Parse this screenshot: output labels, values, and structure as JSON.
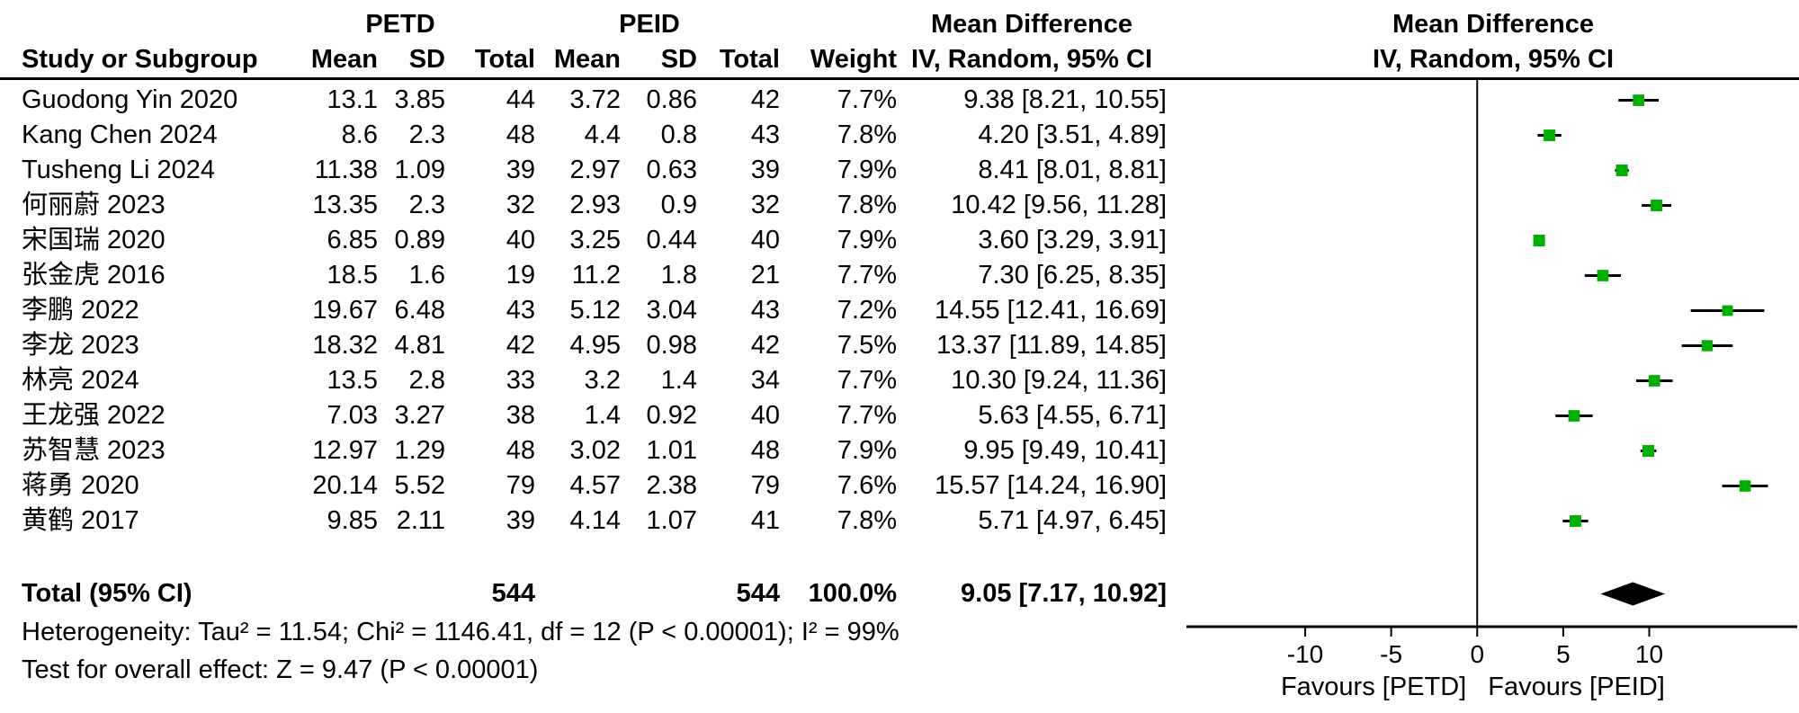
{
  "header": {
    "group_petd": "PETD",
    "group_peid": "PEID",
    "md_text_col": "Mean Difference",
    "md_plot_col": "Mean Difference",
    "study": "Study or Subgroup",
    "mean": "Mean",
    "sd": "SD",
    "total": "Total",
    "weight": "Weight",
    "ci_method": "IV, Random, 95% CI",
    "ci_method_plot": "IV, Random, 95% CI"
  },
  "chart_data": {
    "type": "forest",
    "effect_measure": "Mean Difference",
    "effect_method": "IV, Random, 95% CI",
    "marker_color": "#00B000",
    "line_color": "#000000",
    "xlim": [
      -16.9,
      18.6
    ],
    "x_ticks": [
      -10,
      -5,
      0,
      5,
      10
    ],
    "x_axis_labels": {
      "left": "Favours [PETD]",
      "right": "Favours [PEID]"
    },
    "studies": [
      {
        "name": "Guodong Yin 2020",
        "mean1": 13.1,
        "sd1": 3.85,
        "n1": 44,
        "mean2": 3.72,
        "sd2": 0.86,
        "n2": 42,
        "weight": "7.7%",
        "weight_pct": 7.7,
        "md": 9.38,
        "lo": 8.21,
        "hi": 10.55,
        "ci_text": "9.38 [8.21, 10.55]"
      },
      {
        "name": "Kang Chen 2024",
        "mean1": 8.6,
        "sd1": 2.3,
        "n1": 48,
        "mean2": 4.4,
        "sd2": 0.8,
        "n2": 43,
        "weight": "7.8%",
        "weight_pct": 7.8,
        "md": 4.2,
        "lo": 3.51,
        "hi": 4.89,
        "ci_text": "4.20 [3.51, 4.89]"
      },
      {
        "name": "Tusheng Li 2024",
        "mean1": 11.38,
        "sd1": 1.09,
        "n1": 39,
        "mean2": 2.97,
        "sd2": 0.63,
        "n2": 39,
        "weight": "7.9%",
        "weight_pct": 7.9,
        "md": 8.41,
        "lo": 8.01,
        "hi": 8.81,
        "ci_text": "8.41 [8.01, 8.81]"
      },
      {
        "name": "何丽蔚 2023",
        "mean1": 13.35,
        "sd1": 2.3,
        "n1": 32,
        "mean2": 2.93,
        "sd2": 0.9,
        "n2": 32,
        "weight": "7.8%",
        "weight_pct": 7.8,
        "md": 10.42,
        "lo": 9.56,
        "hi": 11.28,
        "ci_text": "10.42 [9.56, 11.28]"
      },
      {
        "name": "宋国瑞 2020",
        "mean1": 6.85,
        "sd1": 0.89,
        "n1": 40,
        "mean2": 3.25,
        "sd2": 0.44,
        "n2": 40,
        "weight": "7.9%",
        "weight_pct": 7.9,
        "md": 3.6,
        "lo": 3.29,
        "hi": 3.91,
        "ci_text": "3.60 [3.29, 3.91]"
      },
      {
        "name": "张金虎 2016",
        "mean1": 18.5,
        "sd1": 1.6,
        "n1": 19,
        "mean2": 11.2,
        "sd2": 1.8,
        "n2": 21,
        "weight": "7.7%",
        "weight_pct": 7.7,
        "md": 7.3,
        "lo": 6.25,
        "hi": 8.35,
        "ci_text": "7.30 [6.25, 8.35]"
      },
      {
        "name": "李鹏 2022",
        "mean1": 19.67,
        "sd1": 6.48,
        "n1": 43,
        "mean2": 5.12,
        "sd2": 3.04,
        "n2": 43,
        "weight": "7.2%",
        "weight_pct": 7.2,
        "md": 14.55,
        "lo": 12.41,
        "hi": 16.69,
        "ci_text": "14.55 [12.41, 16.69]"
      },
      {
        "name": "李龙 2023",
        "mean1": 18.32,
        "sd1": 4.81,
        "n1": 42,
        "mean2": 4.95,
        "sd2": 0.98,
        "n2": 42,
        "weight": "7.5%",
        "weight_pct": 7.5,
        "md": 13.37,
        "lo": 11.89,
        "hi": 14.85,
        "ci_text": "13.37 [11.89, 14.85]"
      },
      {
        "name": "林亮 2024",
        "mean1": 13.5,
        "sd1": 2.8,
        "n1": 33,
        "mean2": 3.2,
        "sd2": 1.4,
        "n2": 34,
        "weight": "7.7%",
        "weight_pct": 7.7,
        "md": 10.3,
        "lo": 9.24,
        "hi": 11.36,
        "ci_text": "10.30 [9.24, 11.36]"
      },
      {
        "name": "王龙强 2022",
        "mean1": 7.03,
        "sd1": 3.27,
        "n1": 38,
        "mean2": 1.4,
        "sd2": 0.92,
        "n2": 40,
        "weight": "7.7%",
        "weight_pct": 7.7,
        "md": 5.63,
        "lo": 4.55,
        "hi": 6.71,
        "ci_text": "5.63 [4.55, 6.71]"
      },
      {
        "name": "苏智慧 2023",
        "mean1": 12.97,
        "sd1": 1.29,
        "n1": 48,
        "mean2": 3.02,
        "sd2": 1.01,
        "n2": 48,
        "weight": "7.9%",
        "weight_pct": 7.9,
        "md": 9.95,
        "lo": 9.49,
        "hi": 10.41,
        "ci_text": "9.95 [9.49, 10.41]"
      },
      {
        "name": "蒋勇 2020",
        "mean1": 20.14,
        "sd1": 5.52,
        "n1": 79,
        "mean2": 4.57,
        "sd2": 2.38,
        "n2": 79,
        "weight": "7.6%",
        "weight_pct": 7.6,
        "md": 15.57,
        "lo": 14.24,
        "hi": 16.9,
        "ci_text": "15.57 [14.24, 16.90]"
      },
      {
        "name": "黄鹤 2017",
        "mean1": 9.85,
        "sd1": 2.11,
        "n1": 39,
        "mean2": 4.14,
        "sd2": 1.07,
        "n2": 41,
        "weight": "7.8%",
        "weight_pct": 7.8,
        "md": 5.71,
        "lo": 4.97,
        "hi": 6.45,
        "ci_text": "5.71 [4.97, 6.45]"
      }
    ],
    "overall": {
      "label": "Total (95% CI)",
      "total_petd": 544,
      "total_peid": 544,
      "weight": "100.0%",
      "md": 9.05,
      "lo": 7.17,
      "hi": 10.92,
      "ci_text": "9.05 [7.17, 10.92]"
    },
    "heterogeneity_text": "Heterogeneity: Tau² = 11.54; Chi² = 1146.41, df = 12 (P < 0.00001); I² = 99%",
    "overall_effect_text": "Test for overall effect: Z = 9.47 (P < 0.00001)"
  }
}
